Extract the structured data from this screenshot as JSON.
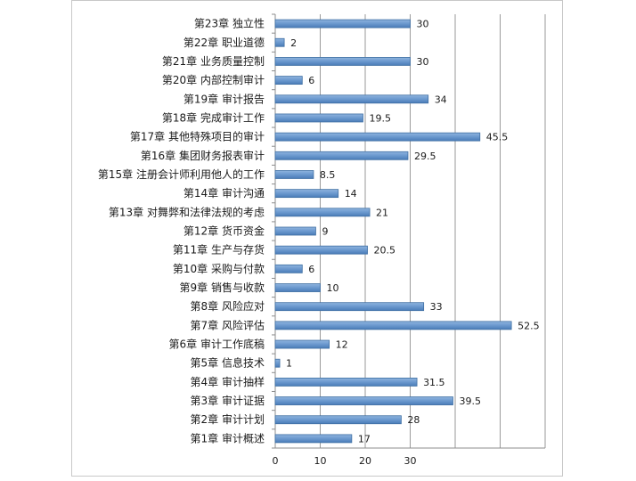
{
  "chart_data": {
    "type": "bar",
    "orientation": "horizontal",
    "categories": [
      "第1章 审计概述",
      "第2章 审计计划",
      "第3章 审计证据",
      "第4章 审计抽样",
      "第5章 信息技术",
      "第6章 审计工作底稿",
      "第7章 风险评估",
      "第8章 风险应对",
      "第9章 销售与收款",
      "第10章 采购与付款",
      "第11章 生产与存货",
      "第12章 货币资金",
      "第13章 对舞弊和法律法规的考虑",
      "第14章 审计沟通",
      "第15章 注册会计师利用他人的工作",
      "第16章 集团财务报表审计",
      "第17章 其他特殊项目的审计",
      "第18章 完成审计工作",
      "第19章 审计报告",
      "第20章 内部控制审计",
      "第21章 业务质量控制",
      "第22章 职业道德",
      "第23章 独立性"
    ],
    "values": [
      17,
      28,
      39.5,
      31.5,
      1,
      12,
      52.5,
      33,
      10,
      6,
      20.5,
      9,
      21,
      14,
      8.5,
      29.5,
      45.5,
      19.5,
      34,
      6,
      30,
      2,
      30
    ],
    "data_labels": [
      "17",
      "28",
      "39.5",
      "31.5",
      "1",
      "12",
      "52.5",
      "33",
      "10",
      "6",
      "20.5",
      "9",
      "21",
      "14",
      "8.5",
      "29.5",
      "45.5",
      "19.5",
      "34",
      "6",
      "30",
      "2",
      "30"
    ],
    "x_ticks": [
      "0",
      "10",
      "20",
      "30"
    ],
    "xlim": [
      0,
      60
    ],
    "grid": "vertical",
    "legend": "none",
    "bar_color": "#5b8fc7",
    "bar_edge_color": "#3f6fa3"
  }
}
